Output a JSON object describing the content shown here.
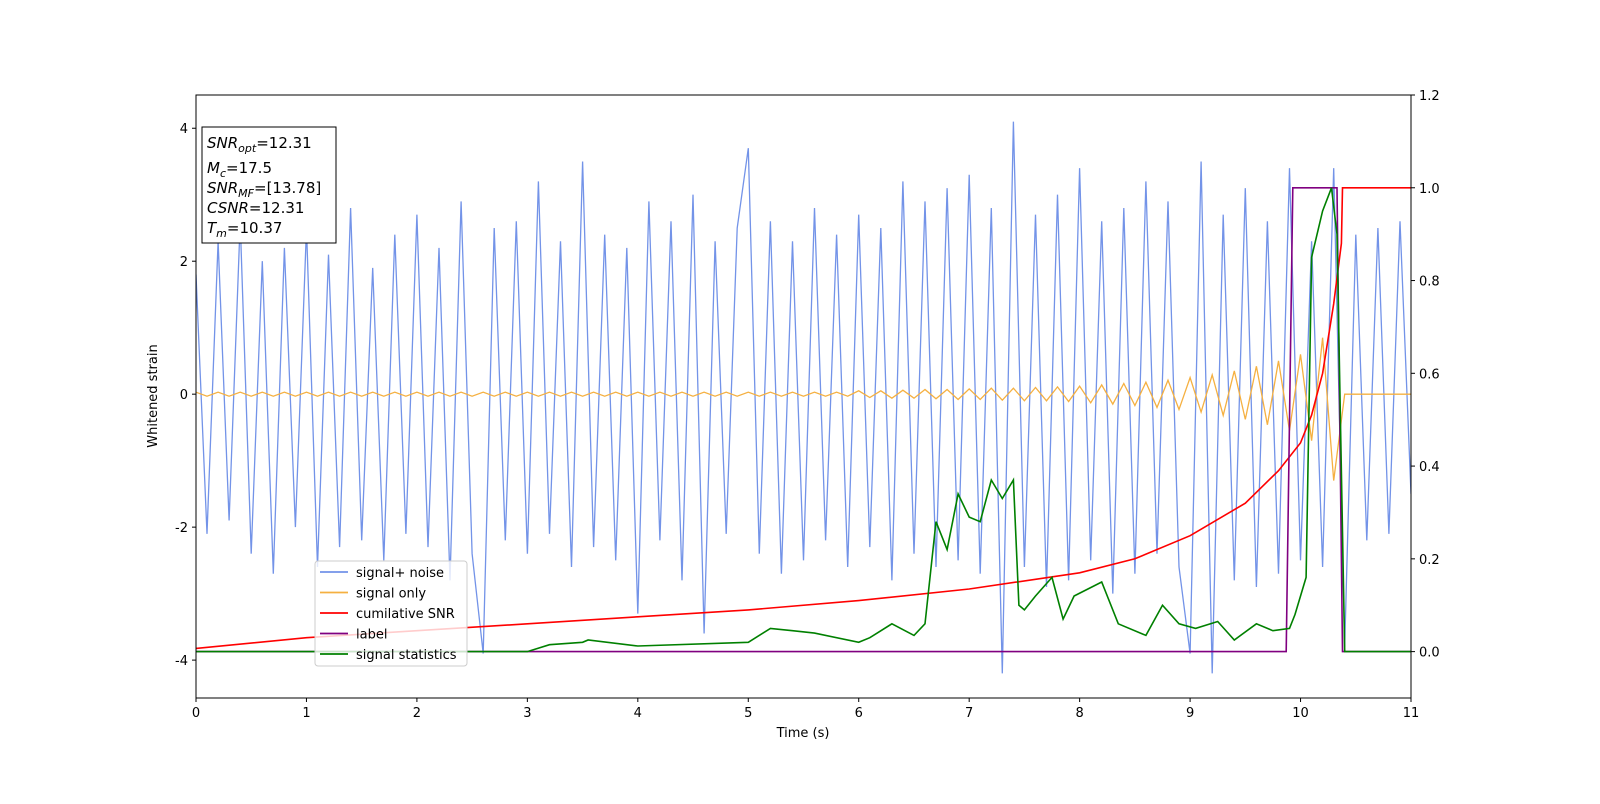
{
  "chart_data": {
    "type": "line",
    "xlabel": "Time (s)",
    "ylabel": "Whitened strain",
    "xlim": [
      0,
      11
    ],
    "xticks": [
      0,
      1,
      2,
      3,
      4,
      5,
      6,
      7,
      8,
      9,
      10,
      11
    ],
    "ylim": [
      -4.57,
      4.5
    ],
    "yticks": [
      -4,
      -2,
      0,
      2,
      4
    ],
    "y2lim": [
      -0.1,
      1.2
    ],
    "y2ticks": [
      {
        "value": 0,
        "label": "0.0"
      },
      0.2,
      0.4,
      0.6,
      0.8,
      {
        "value": 1,
        "label": "1.0"
      },
      1.2
    ],
    "legend": "lower left",
    "annotations": [
      {
        "symbol": "SNR",
        "subscript": "opt",
        "text": "=12.31"
      },
      {
        "symbol": "M",
        "subscript": "c",
        "text": "=17.5"
      },
      {
        "symbol": "SNR",
        "subscript": "MF",
        "text": "=[13.78]"
      },
      {
        "symbol": "CSNR",
        "text": "=12.31"
      },
      {
        "symbol": "T",
        "subscript": "m",
        "text": "=10.37"
      }
    ],
    "x": [
      0,
      0.1,
      0.2,
      0.3,
      0.4,
      0.5,
      0.6,
      0.7,
      0.8,
      0.9,
      1,
      1.1,
      1.2,
      1.3,
      1.4,
      1.5,
      1.6,
      1.7,
      1.8,
      1.9,
      2,
      2.1,
      2.2,
      2.3,
      2.4,
      2.5,
      2.6,
      2.7,
      2.8,
      2.9,
      3,
      3.1,
      3.2,
      3.3,
      3.4,
      3.5,
      3.6,
      3.7,
      3.8,
      3.9,
      4,
      4.1,
      4.2,
      4.3,
      4.4,
      4.5,
      4.6,
      4.7,
      4.8,
      4.9,
      5,
      5.1,
      5.2,
      5.3,
      5.4,
      5.5,
      5.6,
      5.7,
      5.8,
      5.9,
      6,
      6.1,
      6.2,
      6.3,
      6.4,
      6.5,
      6.6,
      6.7,
      6.8,
      6.9,
      7,
      7.1,
      7.2,
      7.3,
      7.4,
      7.5,
      7.6,
      7.7,
      7.8,
      7.9,
      8,
      8.1,
      8.2,
      8.3,
      8.4,
      8.5,
      8.6,
      8.7,
      8.8,
      8.9,
      9,
      9.1,
      9.2,
      9.3,
      9.4,
      9.5,
      9.6,
      9.7,
      9.8,
      9.9,
      10,
      10.1,
      10.2,
      10.3,
      10.4,
      10.5,
      10.6,
      10.7,
      10.8,
      10.9,
      11
    ],
    "series": [
      {
        "name": "signal+ noise",
        "color": "#7393e8",
        "values": [
          1.8,
          -2.1,
          2.3,
          -1.9,
          2.6,
          -2.4,
          2.0,
          -2.7,
          2.2,
          -2.0,
          2.5,
          -2.6,
          2.1,
          -2.3,
          2.8,
          -2.2,
          1.9,
          -2.5,
          2.4,
          -2.1,
          2.7,
          -2.3,
          2.2,
          -2.8,
          2.9,
          -2.4,
          -3.9,
          2.5,
          -2.2,
          2.6,
          -2.4,
          3.2,
          -2.1,
          2.3,
          -2.6,
          3.5,
          -2.3,
          2.4,
          -2.5,
          2.2,
          -3.3,
          2.9,
          -2.2,
          2.6,
          -2.8,
          3.0,
          -3.6,
          2.3,
          -2.1,
          2.5,
          3.7,
          -2.4,
          2.6,
          -2.7,
          2.3,
          -2.5,
          2.8,
          -2.2,
          2.4,
          -2.6,
          2.7,
          -2.3,
          2.5,
          -2.8,
          3.2,
          -2.4,
          2.9,
          -2.6,
          3.1,
          -2.5,
          3.3,
          -2.7,
          2.8,
          -4.2,
          4.1,
          -2.6,
          2.7,
          -2.9,
          3.0,
          -2.8,
          3.4,
          -2.5,
          2.6,
          -3.0,
          2.8,
          -2.7,
          3.2,
          -2.4,
          2.9,
          -2.6,
          -3.9,
          3.5,
          -4.2,
          2.7,
          -2.8,
          3.1,
          -2.9,
          2.6,
          -2.7,
          3.4,
          -2.5,
          2.3,
          -2.6,
          3.4,
          -3.8,
          2.4,
          -2.2,
          2.5,
          -2.1,
          2.6,
          -1.5
        ]
      },
      {
        "name": "signal only",
        "color": "#f5b041",
        "values": [
          0.03,
          -0.03,
          0.03,
          -0.03,
          0.03,
          -0.03,
          0.03,
          -0.03,
          0.03,
          -0.03,
          0.03,
          -0.03,
          0.03,
          -0.03,
          0.03,
          -0.03,
          0.03,
          -0.03,
          0.03,
          -0.03,
          0.03,
          -0.03,
          0.03,
          -0.03,
          0.03,
          -0.03,
          0.03,
          -0.03,
          0.03,
          -0.03,
          0.03,
          -0.03,
          0.03,
          -0.03,
          0.03,
          -0.03,
          0.03,
          -0.03,
          0.03,
          -0.03,
          0.03,
          -0.03,
          0.03,
          -0.03,
          0.03,
          -0.03,
          0.03,
          -0.03,
          0.03,
          -0.03,
          0.03,
          -0.03,
          0.03,
          -0.03,
          0.03,
          -0.03,
          0.03,
          -0.03,
          0.03,
          -0.03,
          0.05,
          -0.05,
          0.05,
          -0.06,
          0.06,
          -0.06,
          0.07,
          -0.07,
          0.07,
          -0.08,
          0.08,
          -0.08,
          0.09,
          -0.09,
          0.09,
          -0.1,
          0.1,
          -0.1,
          0.11,
          -0.11,
          0.12,
          -0.13,
          0.14,
          -0.15,
          0.16,
          -0.17,
          0.18,
          -0.2,
          0.21,
          -0.23,
          0.25,
          -0.27,
          0.29,
          -0.32,
          0.35,
          -0.38,
          0.42,
          -0.46,
          0.5,
          -0.55,
          0.6,
          -0.7,
          0.85,
          -1.3,
          0,
          0,
          0,
          0,
          0,
          0,
          0
        ]
      },
      {
        "name": "cumilative SNR",
        "color": "#ff0000",
        "axis": "y2",
        "x": [
          0,
          1,
          2,
          3,
          4,
          5,
          6,
          7,
          8,
          8.5,
          9,
          9.5,
          9.8,
          10,
          10.1,
          10.2,
          10.3,
          10.37,
          10.38,
          11
        ],
        "values": [
          0.007,
          0.03,
          0.045,
          0.06,
          0.075,
          0.09,
          0.11,
          0.135,
          0.17,
          0.2,
          0.25,
          0.32,
          0.39,
          0.45,
          0.51,
          0.6,
          0.75,
          0.88,
          1.0,
          1.0
        ]
      },
      {
        "name": "label",
        "color": "#800080",
        "axis": "y2",
        "x": [
          0,
          9.87,
          9.93,
          10.33,
          10.38,
          11
        ],
        "values": [
          0,
          0,
          1,
          1,
          0,
          0
        ]
      },
      {
        "name": "signal statistics",
        "color": "#008000",
        "axis": "y2",
        "x": [
          0,
          3,
          3.2,
          3.5,
          3.55,
          4,
          5,
          5.2,
          5.4,
          5.6,
          6,
          6.1,
          6.3,
          6.5,
          6.6,
          6.7,
          6.8,
          6.9,
          7,
          7.1,
          7.2,
          7.3,
          7.4,
          7.45,
          7.5,
          7.6,
          7.75,
          7.85,
          7.95,
          8.2,
          8.35,
          8.6,
          8.75,
          8.9,
          9.05,
          9.25,
          9.4,
          9.6,
          9.75,
          9.9,
          9.95,
          10.05,
          10.1,
          10.2,
          10.28,
          10.33,
          10.4,
          11
        ],
        "values": [
          0,
          0,
          0.015,
          0.02,
          0.025,
          0.012,
          0.02,
          0.05,
          0.045,
          0.04,
          0.02,
          0.03,
          0.06,
          0.035,
          0.06,
          0.28,
          0.22,
          0.34,
          0.29,
          0.28,
          0.37,
          0.33,
          0.37,
          0.1,
          0.09,
          0.12,
          0.16,
          0.07,
          0.12,
          0.15,
          0.06,
          0.035,
          0.1,
          0.06,
          0.05,
          0.065,
          0.025,
          0.06,
          0.045,
          0.05,
          0.08,
          0.16,
          0.85,
          0.95,
          1.0,
          0.9,
          0,
          0
        ]
      }
    ]
  }
}
